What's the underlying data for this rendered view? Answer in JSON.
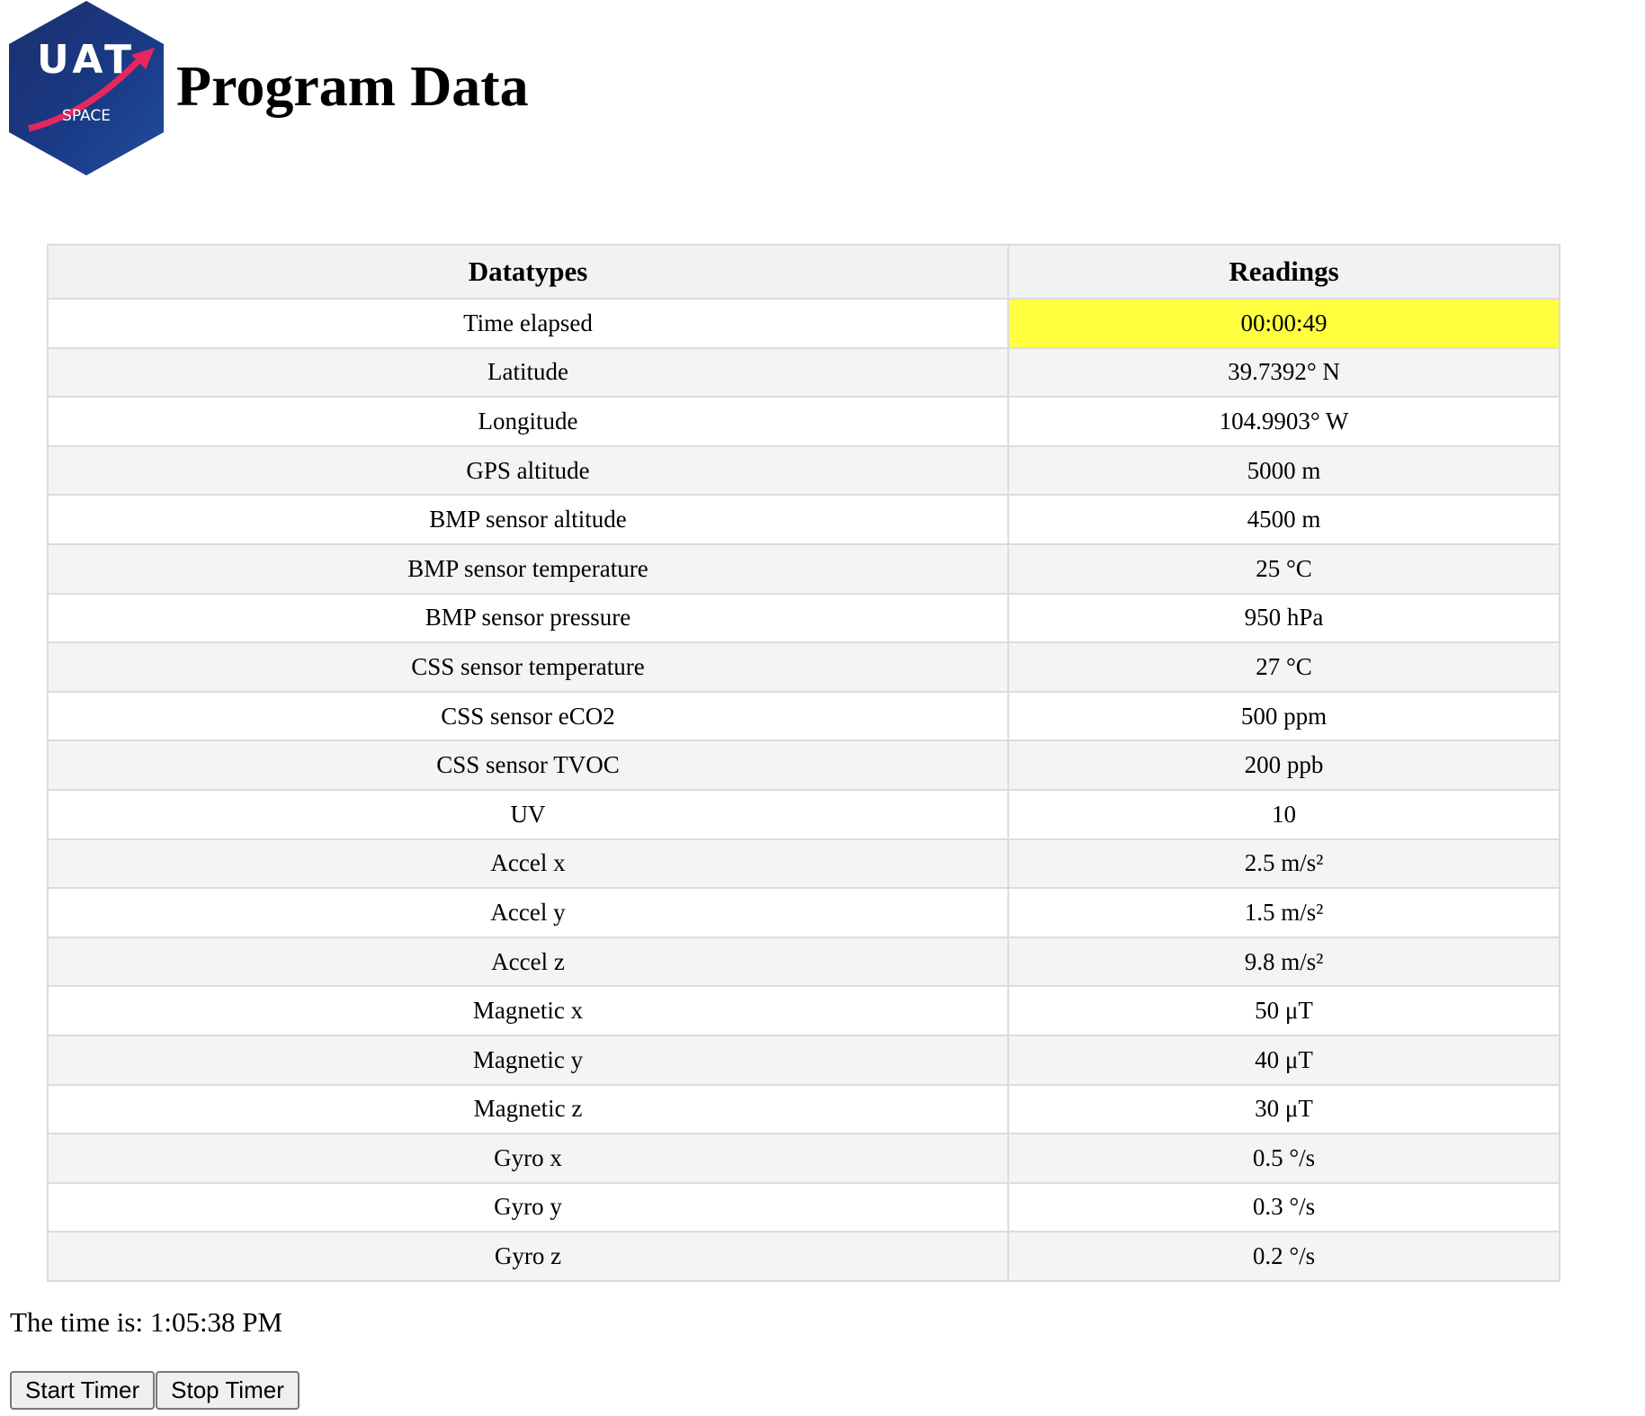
{
  "header": {
    "logo": {
      "line1": "UAT",
      "line2": "SPACE"
    },
    "title": "Program Data"
  },
  "table": {
    "columns": [
      "Datatypes",
      "Readings"
    ],
    "rows": [
      {
        "label": "Time elapsed",
        "value": "00:00:49"
      },
      {
        "label": "Latitude",
        "value": "39.7392° N"
      },
      {
        "label": "Longitude",
        "value": "104.9903° W"
      },
      {
        "label": "GPS altitude",
        "value": "5000 m"
      },
      {
        "label": "BMP sensor altitude",
        "value": "4500 m"
      },
      {
        "label": "BMP sensor temperature",
        "value": "25 °C"
      },
      {
        "label": "BMP sensor pressure",
        "value": "950 hPa"
      },
      {
        "label": "CSS sensor temperature",
        "value": "27 °C"
      },
      {
        "label": "CSS sensor eCO2",
        "value": "500 ppm"
      },
      {
        "label": "CSS sensor TVOC",
        "value": "200 ppb"
      },
      {
        "label": "UV",
        "value": "10"
      },
      {
        "label": "Accel x",
        "value": "2.5 m/s²"
      },
      {
        "label": "Accel y",
        "value": "1.5 m/s²"
      },
      {
        "label": "Accel z",
        "value": "9.8 m/s²"
      },
      {
        "label": "Magnetic x",
        "value": "50 μT"
      },
      {
        "label": "Magnetic y",
        "value": "40 μT"
      },
      {
        "label": "Magnetic z",
        "value": "30 μT"
      },
      {
        "label": "Gyro x",
        "value": "0.5 °/s"
      },
      {
        "label": "Gyro y",
        "value": "0.3 °/s"
      },
      {
        "label": "Gyro z",
        "value": "0.2 °/s"
      }
    ]
  },
  "clock": {
    "text": "The time is: 1:05:38 PM"
  },
  "buttons": {
    "start_label": "Start Timer",
    "stop_label": "Stop Timer"
  },
  "colors": {
    "highlight": "#ffff40",
    "row_alt": "#f4f4f4",
    "border": "#dcdcdc"
  }
}
